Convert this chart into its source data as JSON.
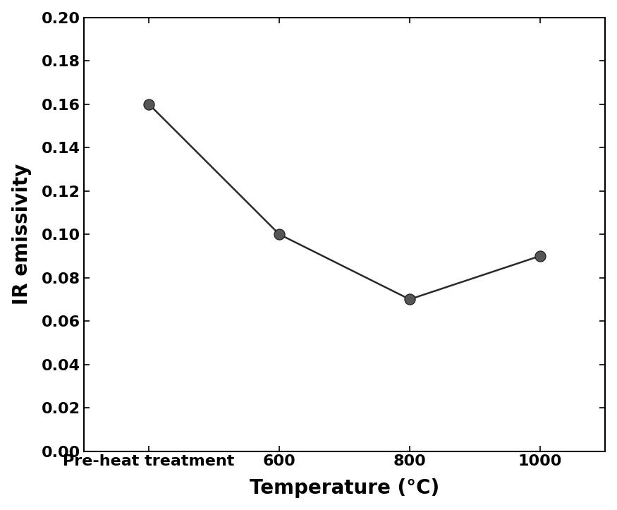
{
  "x_positions": [
    0,
    1,
    2,
    3
  ],
  "x_labels": [
    "Pre-heat treatment",
    "600",
    "800",
    "1000"
  ],
  "y_values": [
    0.16,
    0.1,
    0.07,
    0.09
  ],
  "y_min": 0.0,
  "y_max": 0.2,
  "y_tick_interval": 0.02,
  "xlabel": "Temperature (°C)",
  "ylabel": "IR emissivity",
  "line_color": "#2a2a2a",
  "marker_color": "#555555",
  "marker_size": 120,
  "line_width": 1.8,
  "background_color": "#ffffff",
  "plot_bg_color": "#ffffff",
  "xlabel_fontsize": 20,
  "ylabel_fontsize": 20,
  "tick_fontsize": 16,
  "spine_linewidth": 1.5
}
